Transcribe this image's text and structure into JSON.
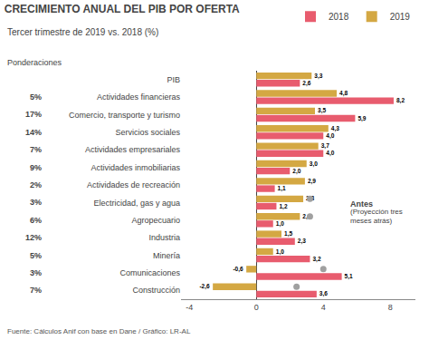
{
  "chart_data": {
    "type": "bar",
    "orientation": "horizontal",
    "title": "CRECIMIENTO ANUAL DEL PIB POR OFERTA",
    "subtitle": "Tercer trimestre de 2019 vs. 2018 (%)",
    "source": "Fuente: Cálculos Anif con base en Dane / Gráfico: LR-AL",
    "categories": [
      "PIB",
      "Actividades financieras",
      "Comercio, transporte y turismo",
      "Servicios sociales",
      "Actividades empresariales",
      "Actividades inmobiliarias",
      "Actividades de recreación",
      "Electricidad, gas y agua",
      "Agropecuario",
      "Industria",
      "Minería",
      "Comunicaciones",
      "Construcción"
    ],
    "weights_title": "Ponderaciones",
    "weights": [
      null,
      5,
      17,
      14,
      7,
      9,
      2,
      3,
      6,
      12,
      5,
      3,
      7
    ],
    "weight_labels": [
      null,
      "5%",
      "17%",
      "14%",
      "7%",
      "9%",
      "2%",
      "3%",
      "6%",
      "12%",
      "5%",
      "3%",
      "7%"
    ],
    "series": [
      {
        "name": "2019",
        "type": "bar",
        "color": "#D4A843",
        "values": [
          3.3,
          4.8,
          3.5,
          4.3,
          3.7,
          3.0,
          2.9,
          2.8,
          2.6,
          1.5,
          1.0,
          -0.6,
          -2.6
        ],
        "value_labels": [
          "3,3",
          "4,8",
          "3,5",
          "4,3",
          "3,7",
          "3,0",
          "2,9",
          "2,8",
          "2,6",
          "1,5",
          "1,0",
          "-0,6",
          "-2,6"
        ]
      },
      {
        "name": "2018",
        "type": "bar",
        "color": "#E85C6E",
        "values": [
          2.6,
          8.2,
          5.9,
          4.0,
          4.0,
          2.0,
          1.1,
          1.2,
          1.0,
          2.3,
          3.2,
          5.1,
          3.6
        ],
        "value_labels": [
          "2,6",
          "8,2",
          "5,9",
          "4,0",
          "4,0",
          "2,0",
          "1,1",
          "1,2",
          "1,0",
          "2,3",
          "3,2",
          "5,1",
          "3,6"
        ]
      },
      {
        "name": "Antes",
        "type": "scatter",
        "marker": "circle",
        "color": "#A0A0A0",
        "values": [
          null,
          null,
          null,
          null,
          null,
          null,
          null,
          3.2,
          3.2,
          null,
          null,
          4.0,
          2.4
        ]
      }
    ],
    "annotations": [
      {
        "text": "(Proyección tres\nmeses atrás)"
      }
    ],
    "xlim": [
      -4.5,
      9.5
    ],
    "xticks": [
      -4,
      0,
      4,
      8
    ],
    "data_labels": true,
    "grid": false,
    "legend": "upper right"
  }
}
